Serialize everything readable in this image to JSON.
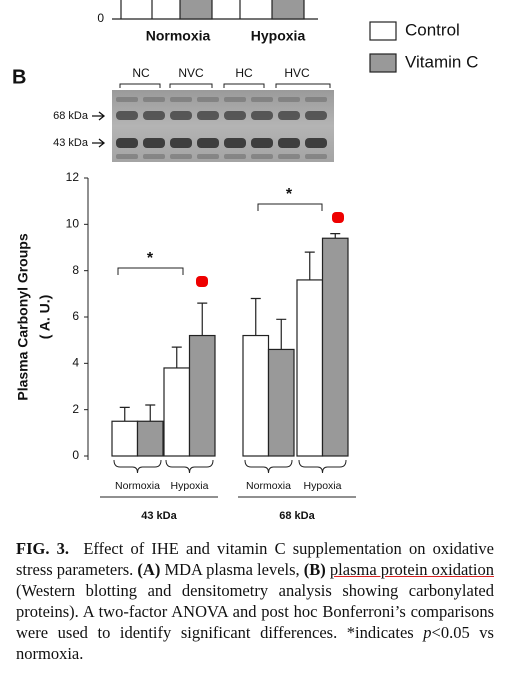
{
  "panel_a": {
    "ytick": 0,
    "categories": [
      "Normoxia",
      "Hypoxia"
    ]
  },
  "panel_label": "B",
  "blot": {
    "lane_labels": [
      "NC",
      "NVC",
      "HC",
      "HVC"
    ],
    "markers": [
      "68 kDa",
      "43 kDa"
    ]
  },
  "chart_data": {
    "type": "bar",
    "ylabel": "Plasma Carbonyl Groups",
    "ylabel2": "( A. U.)",
    "groups": [
      {
        "label": "43 kDa",
        "categories": [
          "Normoxia",
          "Hypoxia"
        ]
      },
      {
        "label": "68 kDa",
        "categories": [
          "Normoxia",
          "Hypoxia"
        ]
      }
    ],
    "series": [
      {
        "name": "Control",
        "color": "#ffffff",
        "values": [
          1.5,
          3.8,
          5.2,
          7.6
        ],
        "errors": [
          0.6,
          0.9,
          1.6,
          1.2
        ]
      },
      {
        "name": "Vitamin C",
        "color": "#999999",
        "values": [
          1.5,
          5.2,
          4.6,
          9.4
        ],
        "errors": [
          0.7,
          1.4,
          1.3,
          0.2
        ]
      }
    ],
    "ylim": [
      0,
      12
    ],
    "yticks": [
      0,
      2,
      4,
      6,
      8,
      10,
      12
    ],
    "annotations": [
      "*",
      "*"
    ]
  },
  "caption": [
    {
      "text": "FIG. 3.",
      "bold": true
    },
    {
      "text": "  Effect of IHE and vitamin C supplementation on oxidative stress parameters. "
    },
    {
      "text": "(A)",
      "bold": true
    },
    {
      "text": " MDA plasma levels, "
    },
    {
      "text": "(B)",
      "bold": true
    },
    {
      "text": "plasma protein oxidation",
      "underline": true
    },
    {
      "text": " (Western blotting and densitometry analysis showing carbonylated proteins). A two-factor ANOVA and post hoc Bonferroni’s comparisons were used to identify significant differences. *indicates "
    },
    {
      "text": "p",
      "italic": true
    },
    {
      "text": "<0.05 vs normoxia."
    }
  ]
}
